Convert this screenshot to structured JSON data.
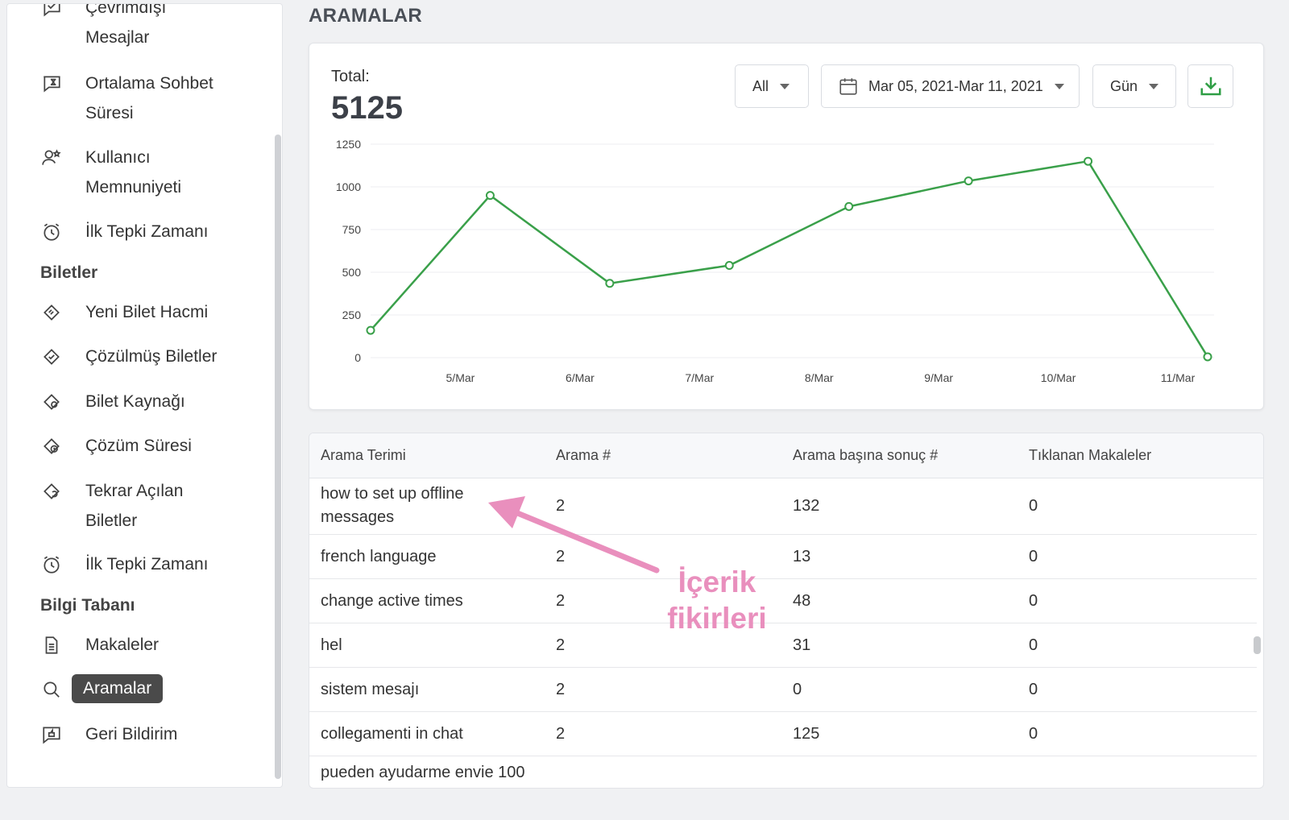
{
  "sidebar": {
    "items": [
      {
        "label": "Çevrimdışı",
        "label2": "Mesajlar",
        "icon": "offline-message-icon"
      },
      {
        "label": "Ortalama Sohbet",
        "label2": "Süresi",
        "icon": "chat-duration-icon"
      },
      {
        "label": "Kullanıcı",
        "label2": "Memnuniyeti",
        "icon": "user-star-icon"
      },
      {
        "label": "İlk Tepki Zamanı",
        "icon": "alarm-clock-icon"
      },
      {
        "label": "Yeni Bilet Hacmi",
        "icon": "ticket-icon"
      },
      {
        "label": "Çözülmüş Biletler",
        "icon": "ticket-check-icon"
      },
      {
        "label": "Bilet Kaynağı",
        "icon": "ticket-source-icon"
      },
      {
        "label": "Çözüm Süresi",
        "icon": "ticket-time-icon"
      },
      {
        "label": "Tekrar Açılan",
        "label2": "Biletler",
        "icon": "ticket-reopen-icon"
      },
      {
        "label": "İlk Tepki Zamanı",
        "icon": "alarm-clock-icon"
      },
      {
        "label": "Makaleler",
        "icon": "document-icon"
      },
      {
        "label": "Aramalar",
        "icon": "search-icon",
        "active": true
      },
      {
        "label": "Geri Bildirim",
        "icon": "feedback-icon"
      }
    ],
    "sections": [
      "Biletler",
      "Bilgi Tabanı"
    ]
  },
  "page": {
    "title": "ARAMALAR"
  },
  "summary": {
    "total_label": "Total:",
    "total_value": "5125"
  },
  "filters": {
    "channel": "All",
    "date_range": "Mar 05, 2021-Mar 11, 2021",
    "granularity": "Gün"
  },
  "colors": {
    "line": "#3aa04a",
    "accent_download": "#2e9e44",
    "annotation": "#e98fbd",
    "active_bg": "#4a4a4a"
  },
  "chart_data": {
    "type": "line",
    "x": [
      "",
      "5/Mar",
      "6/Mar",
      "7/Mar",
      "8/Mar",
      "9/Mar",
      "10/Mar",
      "11/Mar"
    ],
    "series": [
      {
        "values": [
          160,
          950,
          435,
          540,
          885,
          1035,
          1150,
          5
        ]
      }
    ],
    "y_ticks": [
      "0",
      "250",
      "500",
      "750",
      "1000",
      "1250"
    ],
    "ylim": [
      0,
      1250
    ],
    "grid": true
  },
  "table": {
    "headers": [
      "Arama Terimi",
      "Arama #",
      "Arama başına sonuç #",
      "Tıklanan Makaleler"
    ],
    "rows": [
      {
        "term": "how to set up offline",
        "term2": "messages",
        "searches": "2",
        "results": "132",
        "clicked": "0"
      },
      {
        "term": "french language",
        "searches": "2",
        "results": "13",
        "clicked": "0"
      },
      {
        "term": "change active times",
        "searches": "2",
        "results": "48",
        "clicked": "0"
      },
      {
        "term": "hel",
        "searches": "2",
        "results": "31",
        "clicked": "0"
      },
      {
        "term": "sistem mesajı",
        "searches": "2",
        "results": "0",
        "clicked": "0"
      },
      {
        "term": "collegamenti in chat",
        "searches": "2",
        "results": "125",
        "clicked": "0"
      },
      {
        "term": "pueden ayudarme envie 100",
        "searches": "",
        "results": "",
        "clicked": ""
      }
    ]
  },
  "annotation": {
    "line1": "İçerik",
    "line2": "fikirleri"
  }
}
